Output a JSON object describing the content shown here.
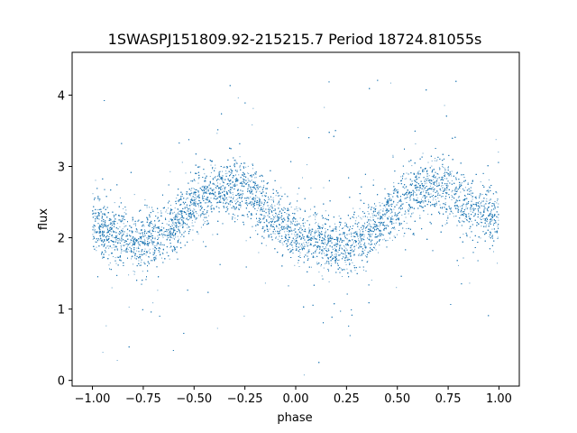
{
  "chart_data": {
    "type": "scatter",
    "title": "1SWASPJ151809.92-215215.7 Period 18724.81055s",
    "xlabel": "phase",
    "ylabel": "flux",
    "xlim": [
      -1.1,
      1.1
    ],
    "ylim": [
      -0.08,
      4.6
    ],
    "x_ticks": [
      -1.0,
      -0.75,
      -0.5,
      -0.25,
      0.0,
      0.25,
      0.5,
      0.75,
      1.0
    ],
    "x_tick_labels": [
      "−1.00",
      "−0.75",
      "−0.50",
      "−0.25",
      "0.00",
      "0.25",
      "0.50",
      "0.75",
      "1.00"
    ],
    "y_ticks": [
      0,
      1,
      2,
      3,
      4
    ],
    "y_tick_labels": [
      "0",
      "1",
      "2",
      "3",
      "4"
    ],
    "grid": false,
    "legend": "none",
    "marker_color": "#1f77b4",
    "series": [
      {
        "x": [
          -1.0,
          -0.9,
          -0.8,
          -0.75,
          -0.7,
          -0.6,
          -0.5,
          -0.4,
          -0.3,
          -0.25,
          -0.2,
          -0.1,
          0.0,
          0.1,
          0.2,
          0.25,
          0.3,
          0.4,
          0.5,
          0.6,
          0.7,
          0.75,
          0.8,
          0.9,
          1.0
        ],
        "y": [
          2.2,
          2.05,
          1.95,
          1.95,
          1.98,
          2.15,
          2.45,
          2.65,
          2.7,
          2.65,
          2.55,
          2.3,
          2.05,
          1.95,
          1.9,
          1.92,
          1.95,
          2.15,
          2.45,
          2.65,
          2.7,
          2.65,
          2.55,
          2.35,
          2.2
        ]
      }
    ]
  }
}
